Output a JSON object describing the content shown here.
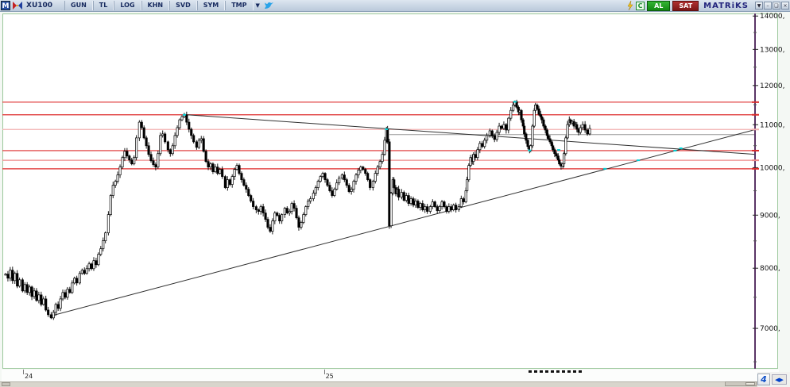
{
  "toolbar": {
    "m_badge": "M",
    "symbol": "XU100",
    "buttons": [
      "GUN",
      "TL",
      "LOG",
      "KHN",
      "SVD",
      "SYM",
      "TMP"
    ],
    "dropdown_glyph": "▼",
    "al_label": "AL",
    "sat_label": "SAT",
    "brand": "MATRiKS",
    "window_buttons": {
      "menu": "▼",
      "minimize": "–",
      "restore": "❑",
      "close": "×"
    }
  },
  "statusbar": {
    "nav_arrows": "◀▶",
    "logo_glyph": "4"
  },
  "chart_data": {
    "type": "candlestick",
    "symbol": "XU100",
    "timeframe": "daily",
    "scale": "log",
    "grid": false,
    "ylim": [
      6400,
      14080
    ],
    "yticks": [
      {
        "label": "7000,",
        "value": 7000
      },
      {
        "label": "8000,",
        "value": 8000
      },
      {
        "label": "9000,",
        "value": 9000
      },
      {
        "label": "10000,",
        "value": 10000
      },
      {
        "label": "11000,",
        "value": 11000
      },
      {
        "label": "12000,",
        "value": 12000
      },
      {
        "label": "13000,",
        "value": 13000
      },
      {
        "label": "14000,",
        "value": 14000
      }
    ],
    "minor_tick_step": 500,
    "xticks": [
      {
        "label": "24",
        "t": 0.03
      },
      {
        "label": "25",
        "t": 0.545
      }
    ],
    "axis_color": "#5a3566",
    "frame_color": "#9cc89c",
    "marker_color": "#00cfd4",
    "levels": [
      {
        "price": 11565,
        "color": "#dd2a2a"
      },
      {
        "price": 11245,
        "color": "#dd2a2a"
      },
      {
        "price": 10885,
        "color": "#f2b0b0"
      },
      {
        "price": 10385,
        "color": "#dd2a2a"
      },
      {
        "price": 10165,
        "color": "#ee8888"
      },
      {
        "price": 9975,
        "color": "#dd2a2a"
      }
    ],
    "gray_line": {
      "price": 10760,
      "t1": 0.657,
      "t2": 1.283,
      "color": "#999999"
    },
    "trendlines": [
      {
        "name": "rising-support",
        "t1": 0.075,
        "p1": 7190,
        "t2": 1.283,
        "p2": 10880,
        "color": "#303030"
      },
      {
        "name": "falling-resistance",
        "t1": 0.306,
        "p1": 11250,
        "t2": 1.283,
        "p2": 10300,
        "color": "#303030"
      }
    ],
    "markers": [
      [
        0.306,
        11245
      ],
      [
        0.652,
        10890
      ],
      [
        0.872,
        11574
      ],
      [
        0.897,
        10390
      ],
      [
        0.947,
        10400
      ],
      [
        1.026,
        9975
      ],
      [
        1.083,
        10165
      ],
      [
        1.146,
        10385
      ],
      [
        1.156,
        10440
      ]
    ],
    "dash_segment": {
      "t1": 0.893,
      "t2": 0.985
    },
    "candles": [
      [
        0.0,
        7895
      ],
      [
        0.004,
        7825
      ],
      [
        0.008,
        7965
      ],
      [
        0.012,
        7783
      ],
      [
        0.016,
        7908
      ],
      [
        0.02,
        7688
      ],
      [
        0.024,
        7797
      ],
      [
        0.029,
        7607
      ],
      [
        0.033,
        7715
      ],
      [
        0.037,
        7580
      ],
      [
        0.041,
        7674
      ],
      [
        0.045,
        7513
      ],
      [
        0.049,
        7607
      ],
      [
        0.053,
        7447
      ],
      [
        0.057,
        7540
      ],
      [
        0.061,
        7382
      ],
      [
        0.065,
        7473
      ],
      [
        0.069,
        7291
      ],
      [
        0.073,
        7216
      ],
      [
        0.078,
        7165
      ],
      [
        0.082,
        7253
      ],
      [
        0.086,
        7382
      ],
      [
        0.09,
        7317
      ],
      [
        0.094,
        7473
      ],
      [
        0.098,
        7580
      ],
      [
        0.102,
        7500
      ],
      [
        0.106,
        7634
      ],
      [
        0.11,
        7580
      ],
      [
        0.114,
        7742
      ],
      [
        0.118,
        7824
      ],
      [
        0.122,
        7742
      ],
      [
        0.127,
        7908
      ],
      [
        0.131,
        7964
      ],
      [
        0.135,
        7908
      ],
      [
        0.139,
        7992
      ],
      [
        0.143,
        8077
      ],
      [
        0.147,
        7992
      ],
      [
        0.151,
        8135
      ],
      [
        0.155,
        8063
      ],
      [
        0.159,
        8251
      ],
      [
        0.163,
        8353
      ],
      [
        0.167,
        8502
      ],
      [
        0.171,
        8653
      ],
      [
        0.176,
        9011
      ],
      [
        0.18,
        9400
      ],
      [
        0.184,
        9617
      ],
      [
        0.188,
        9702
      ],
      [
        0.192,
        9840
      ],
      [
        0.196,
        10014
      ],
      [
        0.2,
        10226
      ],
      [
        0.204,
        10370
      ],
      [
        0.208,
        10262
      ],
      [
        0.212,
        10172
      ],
      [
        0.216,
        10084
      ],
      [
        0.22,
        10226
      ],
      [
        0.224,
        10683
      ],
      [
        0.229,
        11062
      ],
      [
        0.233,
        10928
      ],
      [
        0.237,
        10683
      ],
      [
        0.241,
        10498
      ],
      [
        0.245,
        10298
      ],
      [
        0.249,
        10155
      ],
      [
        0.253,
        10067
      ],
      [
        0.257,
        10014
      ],
      [
        0.261,
        10316
      ],
      [
        0.265,
        10740
      ],
      [
        0.269,
        10777
      ],
      [
        0.273,
        10590
      ],
      [
        0.278,
        10407
      ],
      [
        0.282,
        10316
      ],
      [
        0.286,
        10498
      ],
      [
        0.29,
        10740
      ],
      [
        0.294,
        10928
      ],
      [
        0.298,
        11120
      ],
      [
        0.302,
        11198
      ],
      [
        0.306,
        11237
      ],
      [
        0.31,
        11062
      ],
      [
        0.314,
        10890
      ],
      [
        0.318,
        10740
      ],
      [
        0.322,
        10590
      ],
      [
        0.327,
        10461
      ],
      [
        0.331,
        10627
      ],
      [
        0.335,
        10664
      ],
      [
        0.339,
        10370
      ],
      [
        0.343,
        10137
      ],
      [
        0.347,
        10014
      ],
      [
        0.351,
        10084
      ],
      [
        0.355,
        9909
      ],
      [
        0.359,
        10014
      ],
      [
        0.363,
        9874
      ],
      [
        0.367,
        9961
      ],
      [
        0.371,
        9805
      ],
      [
        0.376,
        9567
      ],
      [
        0.38,
        9736
      ],
      [
        0.384,
        9634
      ],
      [
        0.388,
        9805
      ],
      [
        0.392,
        9961
      ],
      [
        0.396,
        10049
      ],
      [
        0.4,
        9874
      ],
      [
        0.404,
        9736
      ],
      [
        0.408,
        9617
      ],
      [
        0.412,
        9533
      ],
      [
        0.416,
        9400
      ],
      [
        0.42,
        9285
      ],
      [
        0.424,
        9171
      ],
      [
        0.429,
        9107
      ],
      [
        0.433,
        9075
      ],
      [
        0.437,
        9171
      ],
      [
        0.441,
        9043
      ],
      [
        0.445,
        8916
      ],
      [
        0.449,
        8761
      ],
      [
        0.453,
        8684
      ],
      [
        0.457,
        8885
      ],
      [
        0.461,
        9043
      ],
      [
        0.465,
        8995
      ],
      [
        0.469,
        8885
      ],
      [
        0.473,
        9011
      ],
      [
        0.478,
        9139
      ],
      [
        0.482,
        9043
      ],
      [
        0.486,
        9075
      ],
      [
        0.49,
        9236
      ],
      [
        0.494,
        9139
      ],
      [
        0.498,
        8947
      ],
      [
        0.502,
        8761
      ],
      [
        0.506,
        8854
      ],
      [
        0.51,
        9011
      ],
      [
        0.514,
        9171
      ],
      [
        0.518,
        9285
      ],
      [
        0.522,
        9334
      ],
      [
        0.527,
        9450
      ],
      [
        0.531,
        9567
      ],
      [
        0.535,
        9702
      ],
      [
        0.539,
        9805
      ],
      [
        0.543,
        9874
      ],
      [
        0.547,
        9736
      ],
      [
        0.551,
        9617
      ],
      [
        0.555,
        9500
      ],
      [
        0.559,
        9400
      ],
      [
        0.563,
        9533
      ],
      [
        0.567,
        9668
      ],
      [
        0.571,
        9770
      ],
      [
        0.576,
        9840
      ],
      [
        0.58,
        9736
      ],
      [
        0.584,
        9617
      ],
      [
        0.588,
        9483
      ],
      [
        0.592,
        9533
      ],
      [
        0.596,
        9702
      ],
      [
        0.6,
        9840
      ],
      [
        0.604,
        9944
      ],
      [
        0.608,
        10014
      ],
      [
        0.612,
        9961
      ],
      [
        0.616,
        9874
      ],
      [
        0.62,
        9736
      ],
      [
        0.624,
        9567
      ],
      [
        0.629,
        9702
      ],
      [
        0.633,
        9874
      ],
      [
        0.637,
        10014
      ],
      [
        0.641,
        10137
      ],
      [
        0.645,
        10298
      ],
      [
        0.649,
        10627
      ],
      [
        0.652,
        10890
      ],
      [
        0.654,
        10590
      ],
      [
        0.657,
        8790
      ],
      [
        0.66,
        9450
      ],
      [
        0.663,
        9736
      ],
      [
        0.665,
        9567
      ],
      [
        0.668,
        9434
      ],
      [
        0.671,
        9533
      ],
      [
        0.673,
        9367
      ],
      [
        0.678,
        9466
      ],
      [
        0.682,
        9301
      ],
      [
        0.686,
        9400
      ],
      [
        0.69,
        9236
      ],
      [
        0.694,
        9334
      ],
      [
        0.698,
        9203
      ],
      [
        0.702,
        9285
      ],
      [
        0.706,
        9155
      ],
      [
        0.71,
        9236
      ],
      [
        0.714,
        9107
      ],
      [
        0.718,
        9171
      ],
      [
        0.722,
        9075
      ],
      [
        0.727,
        9171
      ],
      [
        0.731,
        9269
      ],
      [
        0.735,
        9171
      ],
      [
        0.739,
        9091
      ],
      [
        0.743,
        9171
      ],
      [
        0.747,
        9269
      ],
      [
        0.751,
        9171
      ],
      [
        0.755,
        9075
      ],
      [
        0.759,
        9171
      ],
      [
        0.763,
        9107
      ],
      [
        0.767,
        9203
      ],
      [
        0.771,
        9107
      ],
      [
        0.776,
        9171
      ],
      [
        0.78,
        9334
      ],
      [
        0.784,
        9269
      ],
      [
        0.788,
        9500
      ],
      [
        0.79,
        9736
      ],
      [
        0.793,
        10049
      ],
      [
        0.796,
        10226
      ],
      [
        0.799,
        10137
      ],
      [
        0.801,
        10298
      ],
      [
        0.804,
        10226
      ],
      [
        0.808,
        10407
      ],
      [
        0.812,
        10553
      ],
      [
        0.816,
        10480
      ],
      [
        0.82,
        10627
      ],
      [
        0.824,
        10740
      ],
      [
        0.829,
        10852
      ],
      [
        0.833,
        10740
      ],
      [
        0.837,
        10646
      ],
      [
        0.841,
        10814
      ],
      [
        0.845,
        10966
      ],
      [
        0.849,
        10909
      ],
      [
        0.853,
        11004
      ],
      [
        0.857,
        10871
      ],
      [
        0.861,
        11159
      ],
      [
        0.865,
        11355
      ],
      [
        0.869,
        11494
      ],
      [
        0.872,
        11574
      ],
      [
        0.875,
        11434
      ],
      [
        0.878,
        11316
      ],
      [
        0.88,
        11355
      ],
      [
        0.883,
        11120
      ],
      [
        0.886,
        10966
      ],
      [
        0.888,
        10777
      ],
      [
        0.891,
        10627
      ],
      [
        0.894,
        10480
      ],
      [
        0.897,
        10389
      ],
      [
        0.899,
        10498
      ],
      [
        0.902,
        10966
      ],
      [
        0.905,
        11355
      ],
      [
        0.907,
        11494
      ],
      [
        0.91,
        11395
      ],
      [
        0.913,
        11257
      ],
      [
        0.916,
        11198
      ],
      [
        0.918,
        11120
      ],
      [
        0.921,
        10966
      ],
      [
        0.924,
        10871
      ],
      [
        0.927,
        10740
      ],
      [
        0.929,
        10664
      ],
      [
        0.932,
        10590
      ],
      [
        0.935,
        10498
      ],
      [
        0.937,
        10407
      ],
      [
        0.94,
        10316
      ],
      [
        0.943,
        10262
      ],
      [
        0.946,
        10172
      ],
      [
        0.948,
        10084
      ],
      [
        0.951,
        10032
      ],
      [
        0.954,
        10084
      ],
      [
        0.956,
        10316
      ],
      [
        0.959,
        10683
      ],
      [
        0.962,
        11004
      ],
      [
        0.965,
        11120
      ],
      [
        0.967,
        11043
      ],
      [
        0.97,
        11081
      ],
      [
        0.973,
        10966
      ],
      [
        0.976,
        11004
      ],
      [
        0.978,
        10890
      ],
      [
        0.981,
        10814
      ],
      [
        0.984,
        10928
      ],
      [
        0.988,
        11004
      ],
      [
        0.992,
        10871
      ],
      [
        0.996,
        10777
      ],
      [
        1.0,
        10909
      ]
    ]
  }
}
